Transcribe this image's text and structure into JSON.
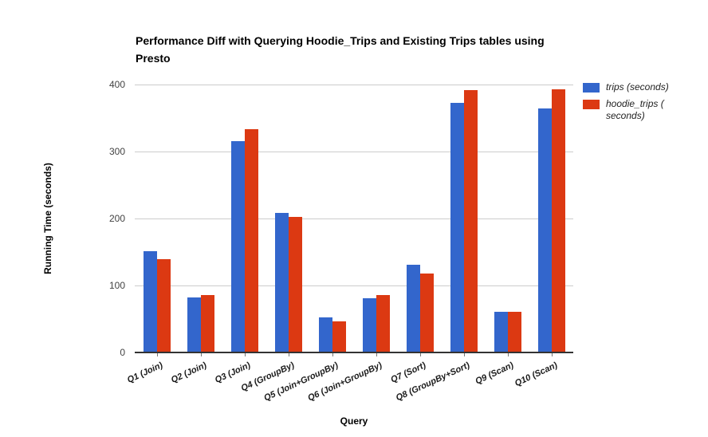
{
  "colors": {
    "series_blue": "#3366CC",
    "series_red": "#DC3912",
    "gridline": "#cccccc",
    "axis_line": "#333333",
    "tick_text": "#424242"
  },
  "chart_data": {
    "type": "bar",
    "title": "Performance Diff with Querying Hoodie_Trips and Existing Trips tables using Presto",
    "xlabel": "Query",
    "ylabel": "Running Time (seconds)",
    "ylim": [
      0,
      400
    ],
    "y_ticks": [
      0,
      100,
      200,
      300,
      400
    ],
    "grid": true,
    "legend_position": "right",
    "categories": [
      "Q1 (Join)",
      "Q2 (Join)",
      "Q3 (Join)",
      "Q4 (GroupBy)",
      "Q5 (Join+GroupBy)",
      "Q6 (Join+GroupBy)",
      "Q7 (Sort)",
      "Q8 (GroupBy+Sort)",
      "Q9 (Scan)",
      "Q10 (Scan)"
    ],
    "series": [
      {
        "name": "trips (seconds)",
        "color": "#3366CC",
        "values": [
          150,
          81,
          314,
          207,
          51,
          80,
          130,
          371,
          60,
          363
        ]
      },
      {
        "name": "hoodie_trips ( seconds)",
        "color": "#DC3912",
        "values": [
          138,
          84,
          332,
          201,
          45,
          84,
          117,
          390,
          59,
          392
        ]
      }
    ]
  }
}
